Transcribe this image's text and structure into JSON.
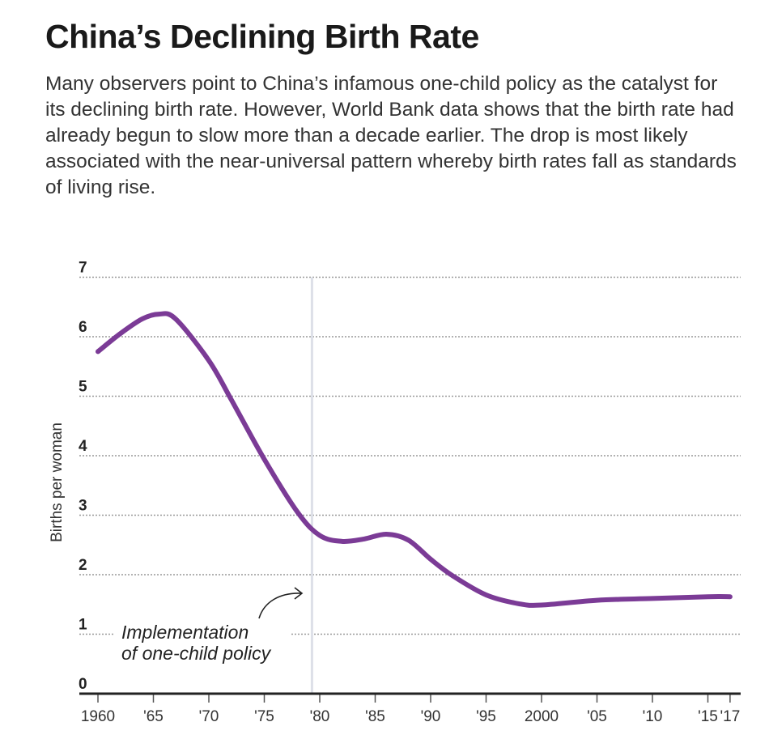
{
  "title": "China’s Declining Birth Rate",
  "description": "Many observers point to China’s infamous one-child policy as the catalyst for its declining birth rate. However, World Bank data shows that the birth rate had already begun to slow more than a decade earlier. The drop is most likely associated with the near-universal pattern whereby birth rates fall as standards of living rise.",
  "chart_data": {
    "type": "line",
    "ylabel": "Births per woman",
    "xlabel": "",
    "xlim": [
      1960,
      2017
    ],
    "ylim": [
      0,
      7
    ],
    "grid": "horizontal dotted",
    "line_color": "#7b3b96",
    "x_ticks": [
      1960,
      1965,
      1970,
      1975,
      1980,
      1985,
      1990,
      1995,
      2000,
      2005,
      2010,
      2015,
      2017
    ],
    "x_tick_labels": [
      "1960",
      "'65",
      "'70",
      "'75",
      "'80",
      "'85",
      "'90",
      "'95",
      "2000",
      "'05",
      "'10",
      "'15",
      "'17"
    ],
    "y_ticks": [
      0,
      1,
      2,
      3,
      4,
      5,
      6,
      7
    ],
    "y_tick_labels": [
      "0",
      "1",
      "2",
      "3",
      "4",
      "5",
      "6",
      "7"
    ],
    "x": [
      1960,
      1962,
      1964,
      1965.5,
      1967,
      1970,
      1972,
      1975,
      1978,
      1980,
      1982,
      1984,
      1986,
      1988,
      1990,
      1992,
      1995,
      1998,
      2000,
      2005,
      2010,
      2015,
      2017
    ],
    "y": [
      5.75,
      6.05,
      6.3,
      6.38,
      6.3,
      5.6,
      4.95,
      3.94,
      3.05,
      2.66,
      2.56,
      2.6,
      2.68,
      2.58,
      2.26,
      1.98,
      1.66,
      1.51,
      1.49,
      1.57,
      1.6,
      1.63,
      1.63
    ],
    "annotation": {
      "line1": "Implementation",
      "line2": "of one-child policy",
      "x": 1979.3
    }
  }
}
